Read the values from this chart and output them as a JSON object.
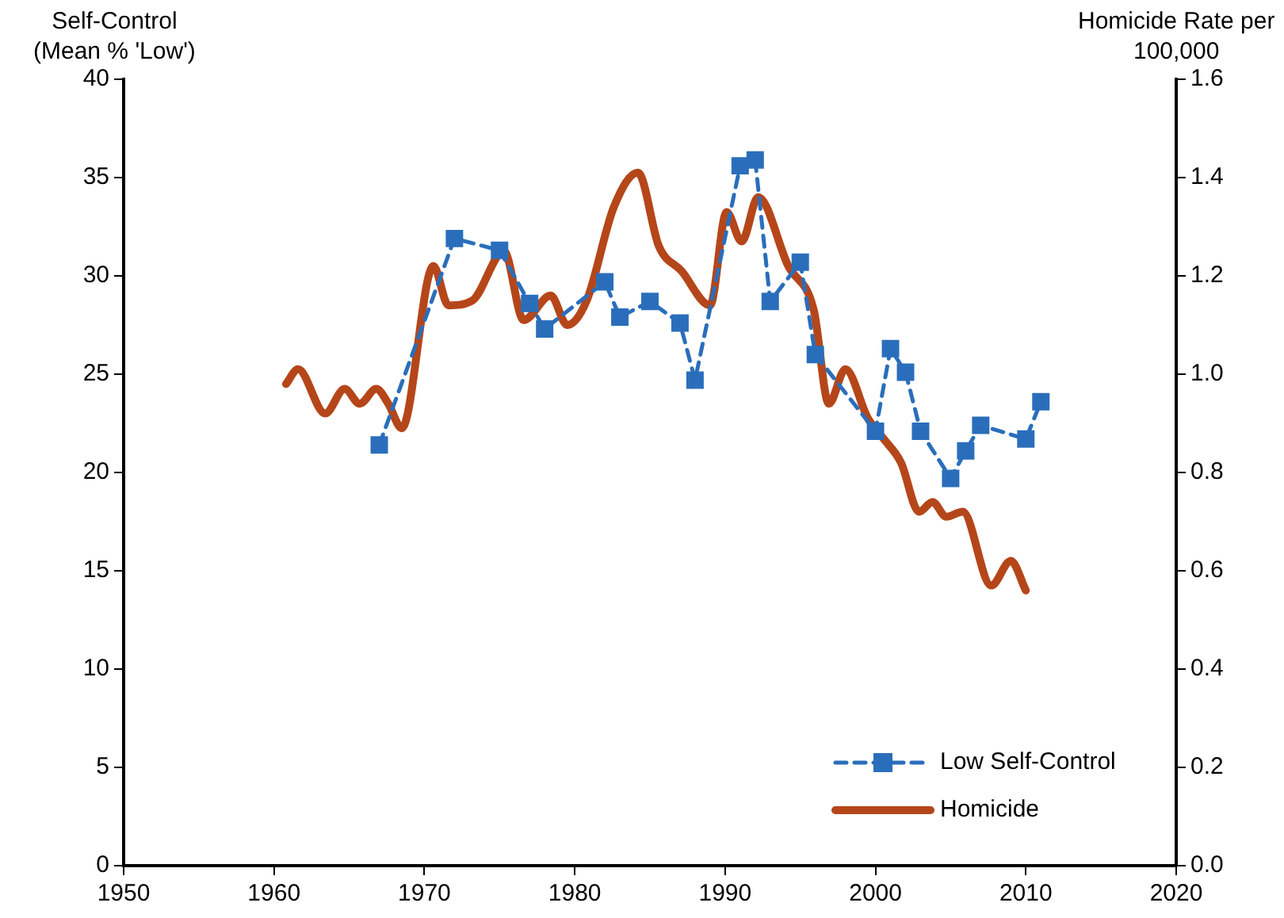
{
  "chart_data": {
    "type": "line",
    "ylabel": "Self-Control\n(Mean % 'Low')",
    "y2label": "Homicide Rate per\n100,000",
    "xlim": [
      1950,
      2020
    ],
    "xticks": [
      1950,
      1960,
      1970,
      1980,
      1990,
      2000,
      2010,
      2020
    ],
    "ylim": [
      0,
      40
    ],
    "yticks": [
      0,
      5,
      10,
      15,
      20,
      25,
      30,
      35,
      40
    ],
    "y2lim": [
      0,
      1.6
    ],
    "y2ticks": [
      {
        "value": 0,
        "label": "0.0"
      },
      {
        "value": 0.2,
        "label": "0.2"
      },
      {
        "value": 0.4,
        "label": "0.4"
      },
      {
        "value": 0.6,
        "label": "0.6"
      },
      {
        "value": 0.8,
        "label": "0.8"
      },
      {
        "value": 1,
        "label": "1.0"
      },
      {
        "value": 1.2,
        "label": "1.2"
      },
      {
        "value": 1.4,
        "label": "1.4"
      },
      {
        "value": 1.6,
        "label": "1.6"
      }
    ],
    "grid": false,
    "legend": "bottom right",
    "series": [
      {
        "name": "Low Self-Control",
        "color": "#2a6ebb",
        "axis": "y",
        "marker": "square",
        "line_style": "dashed",
        "x": [
          1967,
          1972,
          1975,
          1977,
          1978,
          1982,
          1983,
          1985,
          1987,
          1988,
          1991,
          1992,
          1993,
          1995,
          1996,
          2000,
          2001,
          2002,
          2003,
          2005,
          2006,
          2007,
          2010,
          2011
        ],
        "values": [
          21.4,
          31.9,
          31.3,
          28.6,
          27.3,
          29.7,
          27.9,
          28.7,
          27.6,
          24.7,
          35.6,
          35.9,
          28.7,
          30.7,
          26.0,
          22.1,
          26.3,
          25.1,
          22.1,
          19.7,
          21.1,
          22.4,
          21.7,
          23.6
        ]
      },
      {
        "name": "Homicide",
        "color": "#b5461a",
        "axis": "y2",
        "marker": "none",
        "line_style": "solid",
        "x": [
          1960.8,
          1961.6,
          1963.4,
          1964.7,
          1965.7,
          1966.8,
          1967.6,
          1968.5,
          1970.6,
          1971.6,
          1973.2,
          1975.3,
          1976.6,
          1978.4,
          1979.5,
          1980.8,
          1982.6,
          1984.2,
          1985.6,
          1987.1,
          1989,
          1990.1,
          1991.1,
          1992.2,
          1994.2,
          1995.9,
          1996.9,
          1998,
          1999.5,
          2000.5,
          2001.7,
          2002.9,
          2003.8,
          2004.7,
          2005.8,
          2007.7,
          2009,
          2010
        ],
        "values": [
          0.98,
          1.01,
          0.92,
          0.97,
          0.94,
          0.97,
          0.94,
          0.89,
          1.22,
          1.14,
          1.15,
          1.25,
          1.11,
          1.16,
          1.1,
          1.15,
          1.34,
          1.41,
          1.26,
          1.21,
          1.14,
          1.33,
          1.27,
          1.36,
          1.22,
          1.13,
          0.94,
          1.01,
          0.91,
          0.87,
          0.82,
          0.72,
          0.74,
          0.71,
          0.72,
          0.57,
          0.62,
          0.56
        ]
      }
    ]
  }
}
